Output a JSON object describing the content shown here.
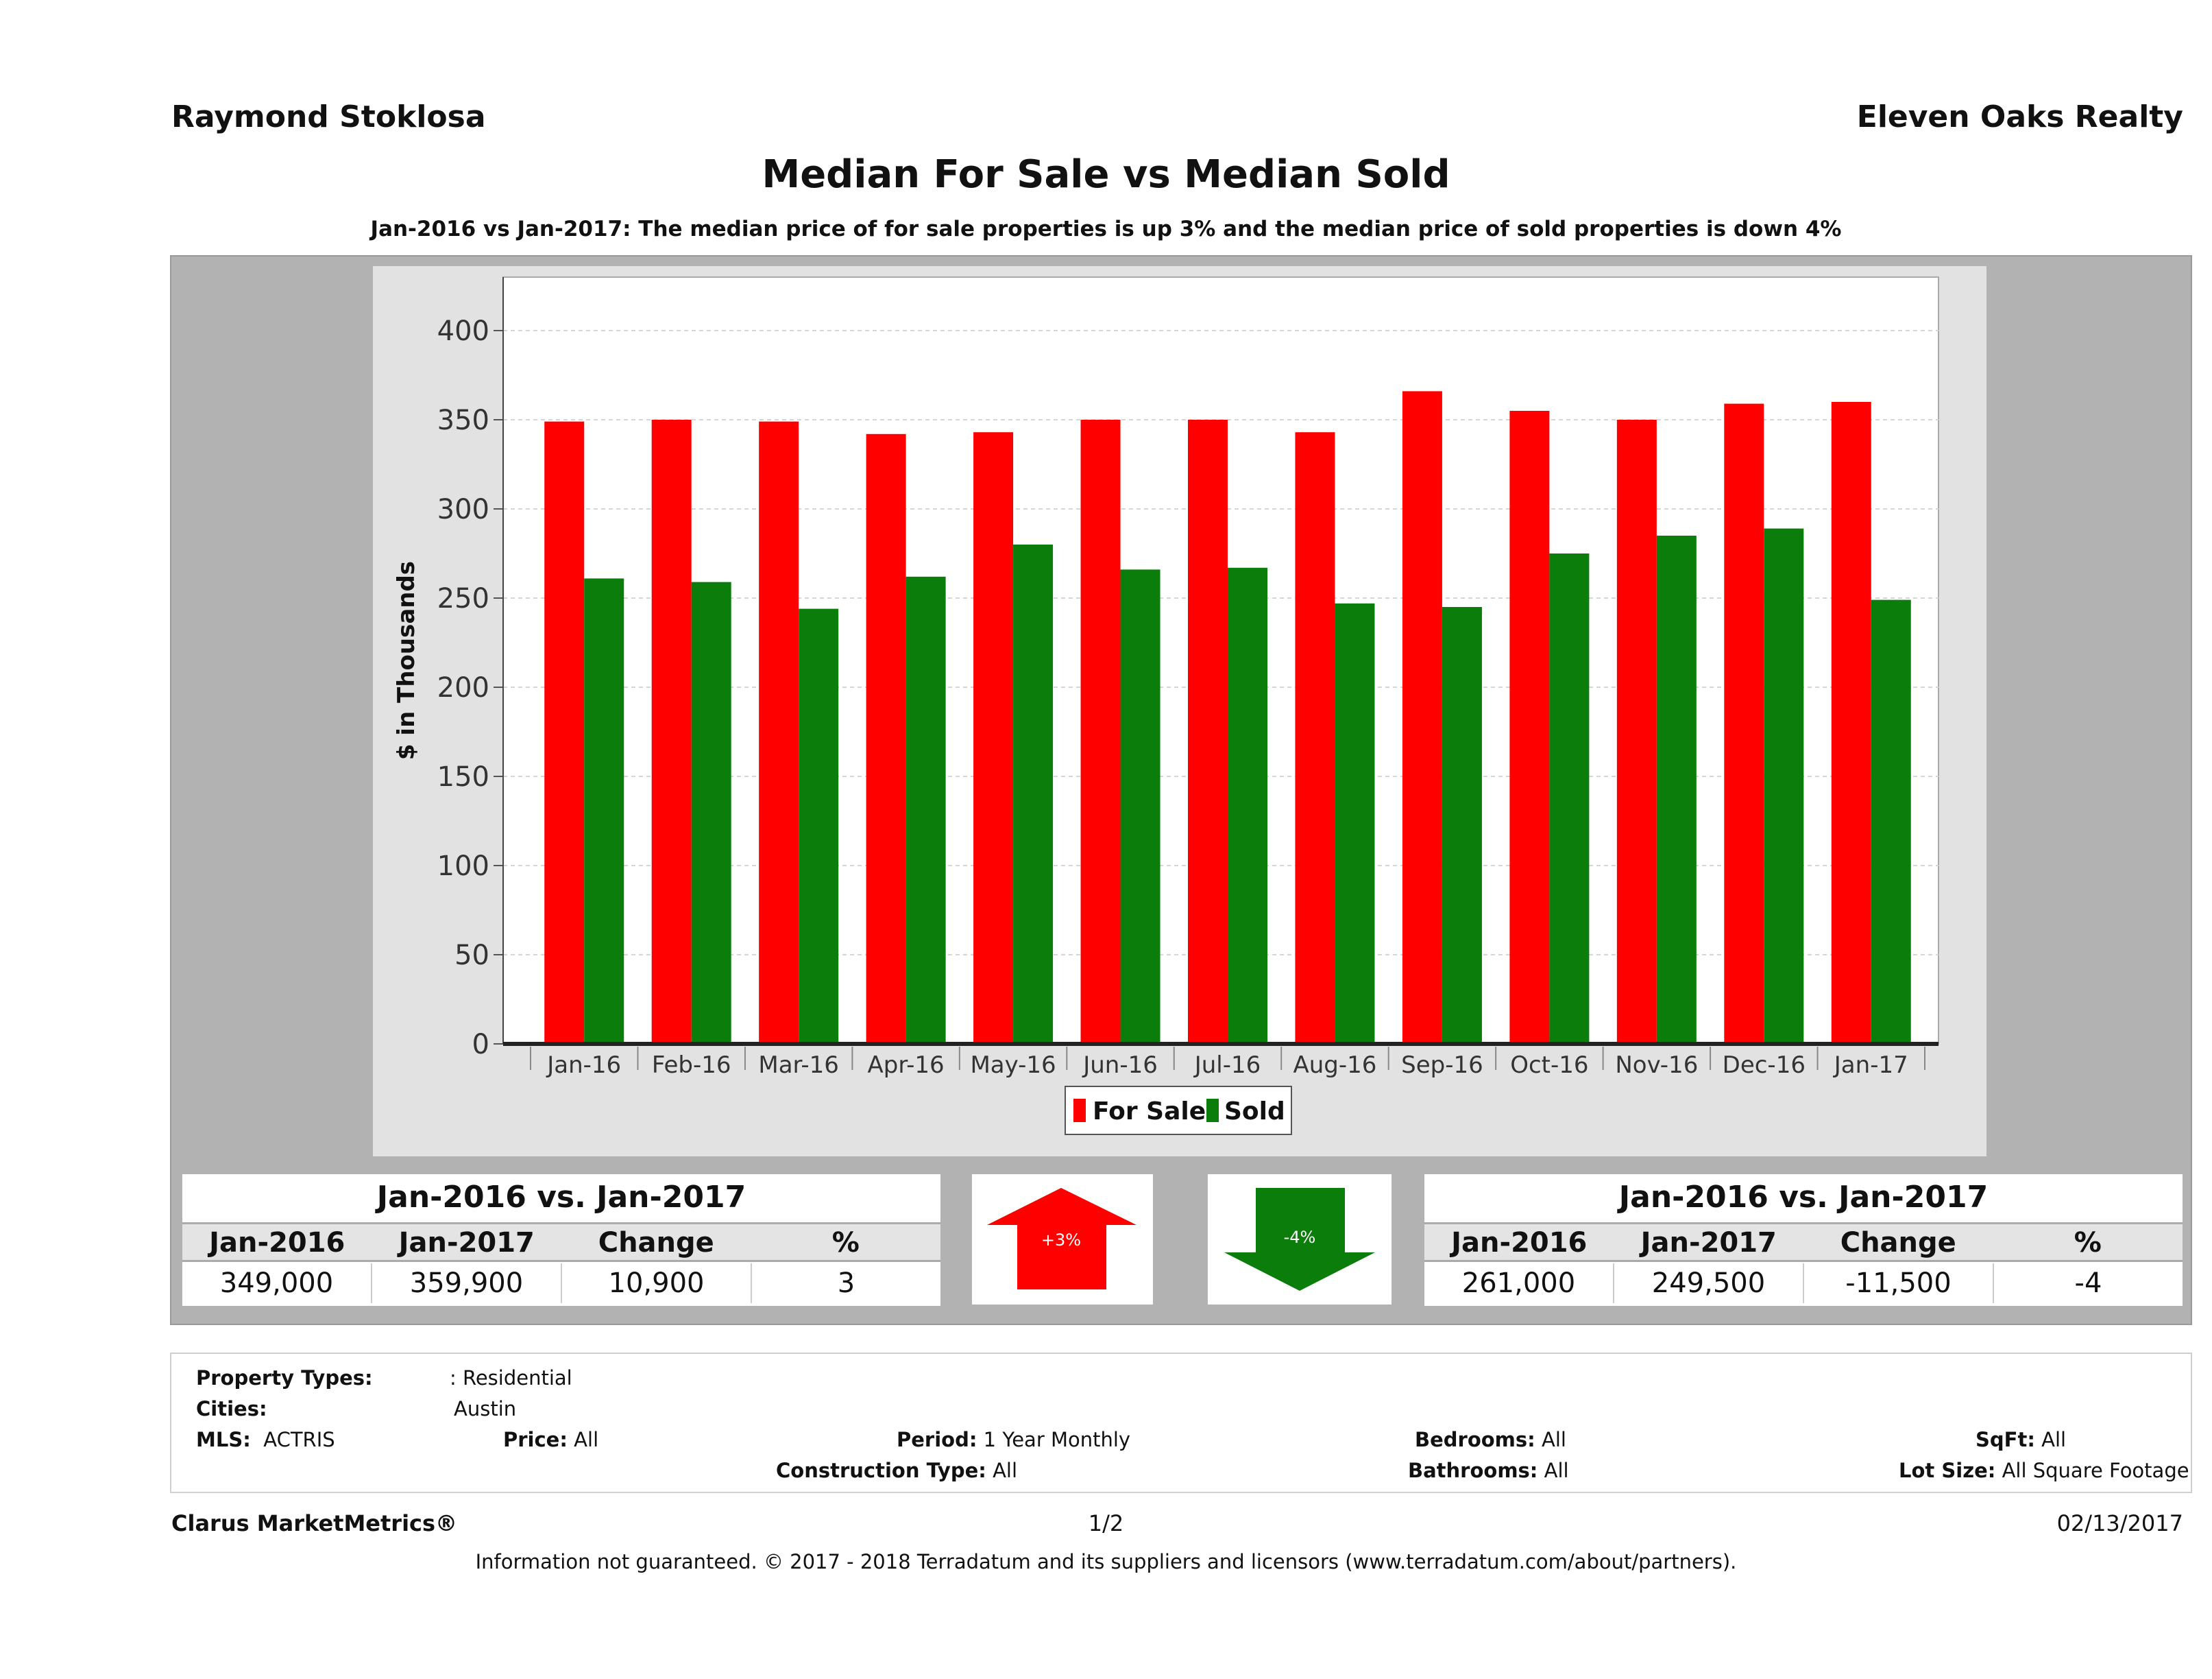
{
  "header": {
    "agent_name": "Raymond Stoklosa",
    "company": "Eleven Oaks Realty",
    "title": "Median For Sale vs Median Sold",
    "subtitle": "Jan-2016 vs Jan-2017: The median price of for sale properties is up 3% and the median price of sold properties is down 4%"
  },
  "chart_data": {
    "type": "bar",
    "categories": [
      "Jan-16",
      "Feb-16",
      "Mar-16",
      "Apr-16",
      "May-16",
      "Jun-16",
      "Jul-16",
      "Aug-16",
      "Sep-16",
      "Oct-16",
      "Nov-16",
      "Dec-16",
      "Jan-17"
    ],
    "series": [
      {
        "name": "For Sale",
        "color": "#ff0000",
        "values": [
          349,
          350,
          349,
          342,
          343,
          350,
          350,
          343,
          366,
          355,
          350,
          359,
          360
        ]
      },
      {
        "name": "Sold",
        "color": "#0a7d0a",
        "values": [
          261,
          259,
          244,
          262,
          280,
          266,
          267,
          247,
          245,
          275,
          285,
          289,
          249
        ]
      }
    ],
    "ylabel": "$ in Thousands",
    "ylim": [
      0,
      430
    ],
    "yticks": [
      0,
      50,
      100,
      150,
      200,
      250,
      300,
      350,
      400
    ],
    "grid": true,
    "legend_position": "bottom-center"
  },
  "for_sale_stats": {
    "title": "Jan-2016 vs. Jan-2017",
    "headers": [
      "Jan-2016",
      "Jan-2017",
      "Change",
      "%"
    ],
    "values": [
      "349,000",
      "359,900",
      "10,900",
      "3"
    ]
  },
  "sold_stats": {
    "title": "Jan-2016 vs. Jan-2017",
    "headers": [
      "Jan-2016",
      "Jan-2017",
      "Change",
      "%"
    ],
    "values": [
      "261,000",
      "249,500",
      "-11,500",
      "-4"
    ]
  },
  "arrows": {
    "up_label": "+3%",
    "up_color": "#ff0000",
    "down_label": "-4%",
    "down_color": "#0a7d0a"
  },
  "criteria": {
    "property_types_label": "Property Types:",
    "property_types_value": ": Residential",
    "cities_label": "Cities:",
    "cities_value": "Austin",
    "mls_label": "MLS:",
    "mls_value": "ACTRIS",
    "price_label": "Price:",
    "price_value": "All",
    "period_label": "Period:",
    "period_value": "1 Year Monthly",
    "bedrooms_label": "Bedrooms:",
    "bedrooms_value": "All",
    "sqft_label": "SqFt:",
    "sqft_value": "All",
    "construction_label": "Construction Type:",
    "construction_value": "All",
    "bathrooms_label": "Bathrooms:",
    "bathrooms_value": "All",
    "lot_size_label": "Lot Size:",
    "lot_size_value": "All Square Footage"
  },
  "footer": {
    "brand": "Clarus MarketMetrics®",
    "page": "1/2",
    "date": "02/13/2017",
    "disclaimer": "Information not guaranteed. © 2017 - 2018 Terradatum and its suppliers and licensors (www.terradatum.com/about/partners)."
  }
}
